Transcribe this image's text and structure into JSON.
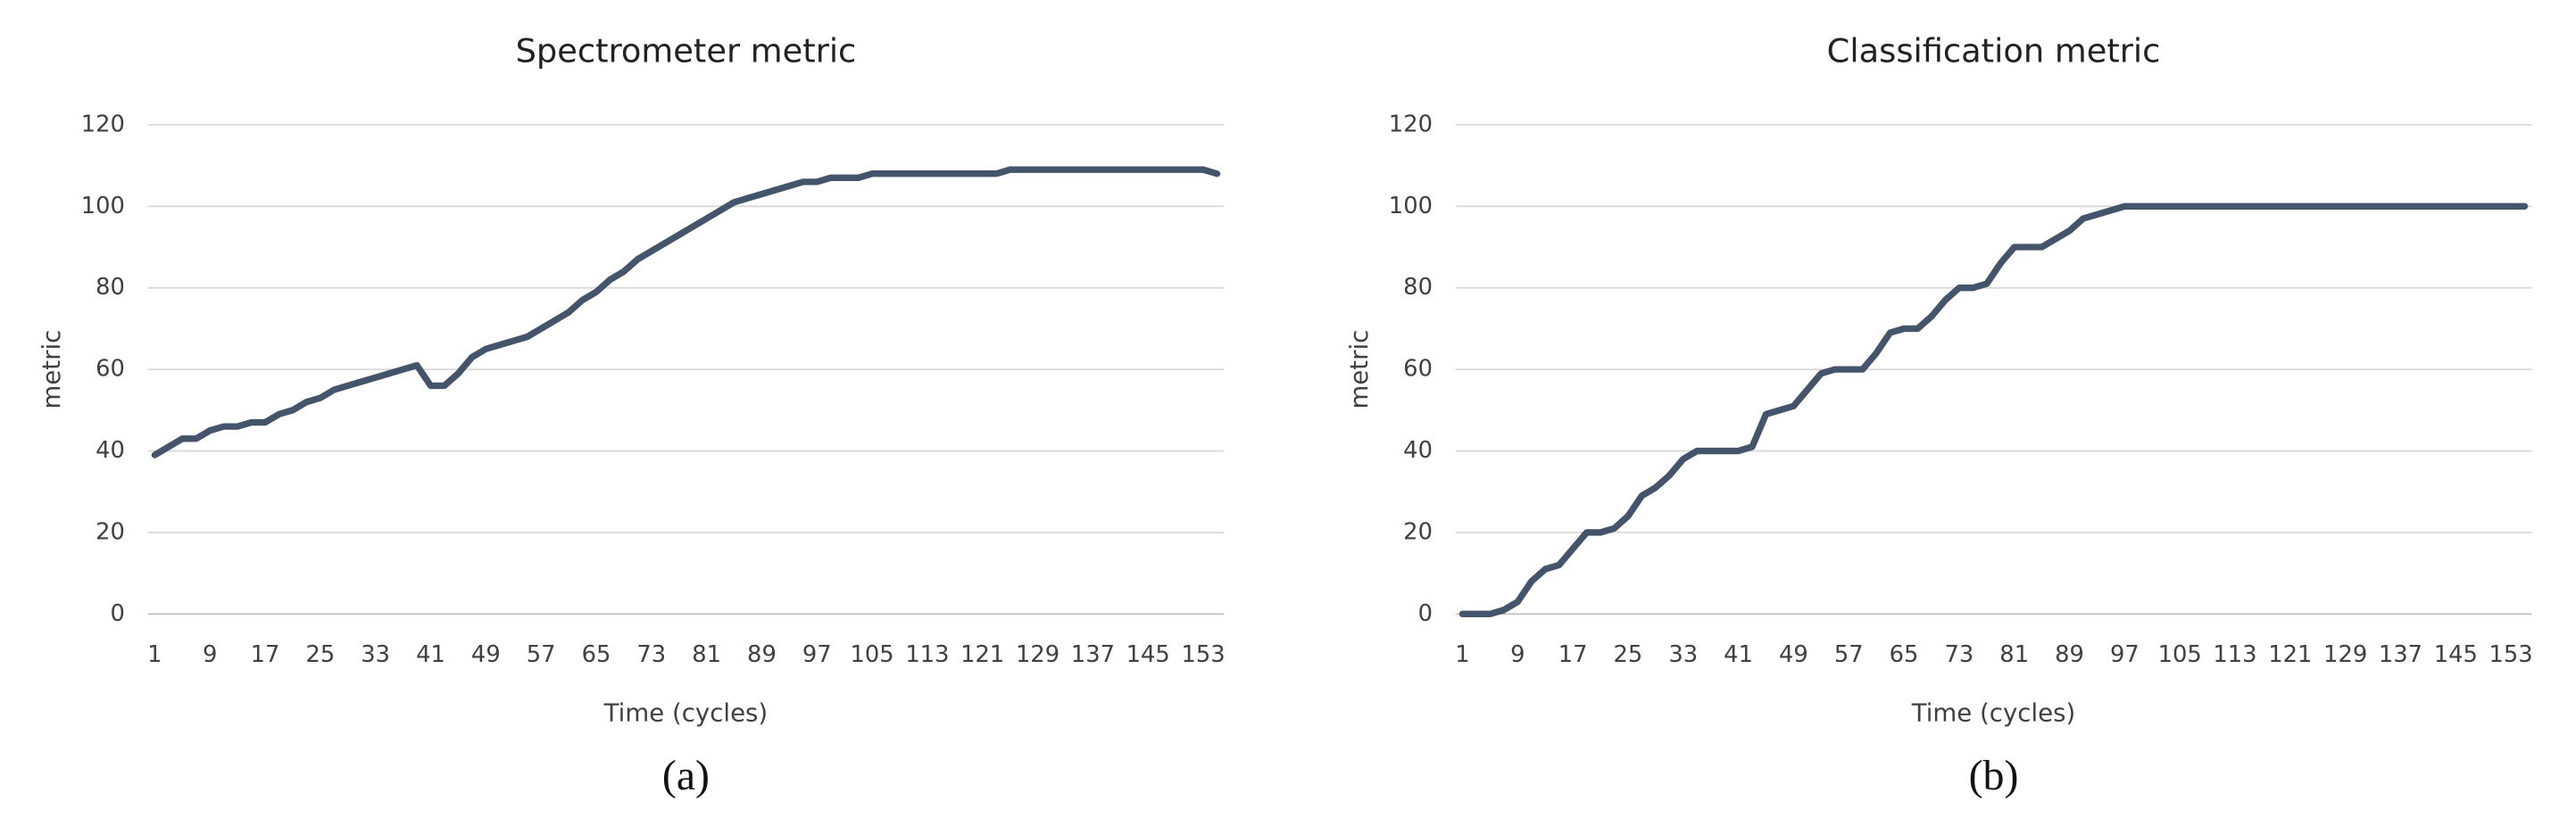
{
  "chart_data": [
    {
      "type": "line",
      "title": "Spectrometer metric",
      "caption": "(a)",
      "x_label": "Time (cycles)",
      "y_label": "metric",
      "x": [
        1,
        3,
        5,
        7,
        9,
        11,
        13,
        15,
        17,
        19,
        21,
        23,
        25,
        27,
        29,
        31,
        33,
        35,
        37,
        39,
        41,
        43,
        45,
        47,
        49,
        51,
        53,
        55,
        57,
        59,
        61,
        63,
        65,
        67,
        69,
        71,
        73,
        75,
        77,
        79,
        81,
        83,
        85,
        87,
        89,
        91,
        93,
        95,
        97,
        99,
        101,
        103,
        105,
        107,
        109,
        111,
        113,
        115,
        117,
        119,
        121,
        123,
        125,
        127,
        129,
        131,
        133,
        135,
        137,
        139,
        141,
        143,
        145,
        147,
        149,
        151,
        153,
        155
      ],
      "series": [
        {
          "color": "#44546a",
          "values": [
            39,
            41,
            43,
            43,
            45,
            46,
            46,
            47,
            47,
            49,
            50,
            52,
            53,
            55,
            56,
            57,
            58,
            59,
            60,
            61,
            56,
            56,
            59,
            63,
            65,
            66,
            67,
            68,
            70,
            72,
            74,
            77,
            79,
            82,
            84,
            87,
            89,
            91,
            93,
            95,
            97,
            99,
            101,
            102,
            103,
            104,
            105,
            106,
            106,
            107,
            107,
            107,
            108,
            108,
            108,
            108,
            108,
            108,
            108,
            108,
            108,
            108,
            109,
            109,
            109,
            109,
            109,
            109,
            109,
            109,
            109,
            109,
            109,
            109,
            109,
            109,
            109,
            108
          ]
        }
      ],
      "xlim": [
        0,
        156
      ],
      "xticks": [
        1,
        9,
        17,
        25,
        33,
        41,
        49,
        57,
        65,
        73,
        81,
        89,
        97,
        105,
        113,
        121,
        129,
        137,
        145,
        153
      ],
      "ylim": [
        0,
        120
      ],
      "yticks": [
        0,
        20,
        40,
        60,
        80,
        100,
        120
      ],
      "grid": true
    },
    {
      "type": "line",
      "title": "Classification metric",
      "caption": "(b)",
      "x_label": "Time (cycles)",
      "y_label": "metric",
      "x": [
        1,
        3,
        5,
        7,
        9,
        11,
        13,
        15,
        17,
        19,
        21,
        23,
        25,
        27,
        29,
        31,
        33,
        35,
        37,
        39,
        41,
        43,
        45,
        47,
        49,
        51,
        53,
        55,
        57,
        59,
        61,
        63,
        65,
        67,
        69,
        71,
        73,
        75,
        77,
        79,
        81,
        83,
        85,
        87,
        89,
        91,
        93,
        95,
        97,
        99,
        101,
        103,
        105,
        107,
        109,
        111,
        113,
        115,
        117,
        119,
        121,
        123,
        125,
        127,
        129,
        131,
        133,
        135,
        137,
        139,
        141,
        143,
        145,
        147,
        149,
        151,
        153,
        155
      ],
      "series": [
        {
          "color": "#44546a",
          "values": [
            0,
            0,
            0,
            1,
            3,
            8,
            11,
            12,
            16,
            20,
            20,
            21,
            24,
            29,
            31,
            34,
            38,
            40,
            40,
            40,
            40,
            41,
            49,
            50,
            51,
            55,
            59,
            60,
            60,
            60,
            64,
            69,
            70,
            70,
            73,
            77,
            80,
            80,
            81,
            86,
            90,
            90,
            90,
            92,
            94,
            97,
            98,
            99,
            100,
            100,
            100,
            100,
            100,
            100,
            100,
            100,
            100,
            100,
            100,
            100,
            100,
            100,
            100,
            100,
            100,
            100,
            100,
            100,
            100,
            100,
            100,
            100,
            100,
            100,
            100,
            100,
            100,
            100
          ]
        }
      ],
      "xlim": [
        0,
        156
      ],
      "xticks": [
        1,
        9,
        17,
        25,
        33,
        41,
        49,
        57,
        65,
        73,
        81,
        89,
        97,
        105,
        113,
        121,
        129,
        137,
        145,
        153
      ],
      "ylim": [
        0,
        120
      ],
      "yticks": [
        0,
        20,
        40,
        60,
        80,
        100,
        120
      ],
      "grid": true
    }
  ]
}
